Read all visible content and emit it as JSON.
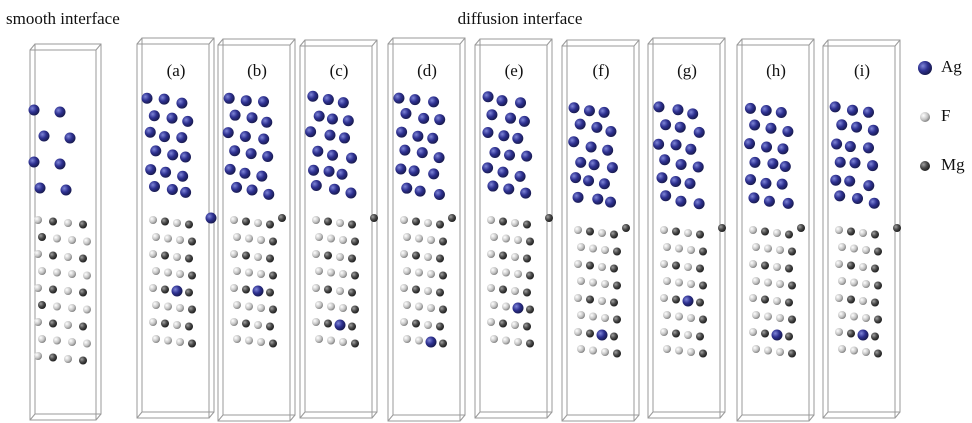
{
  "headings": {
    "smooth": "smooth interface",
    "diffusion": "diffusion interface"
  },
  "panels": [
    "(a)",
    "(b)",
    "(c)",
    "(d)",
    "(e)",
    "(f)",
    "(g)",
    "(h)",
    "(i)"
  ],
  "legend": [
    {
      "label": "Ag"
    },
    {
      "label": "F"
    },
    {
      "label": "Mg"
    }
  ]
}
